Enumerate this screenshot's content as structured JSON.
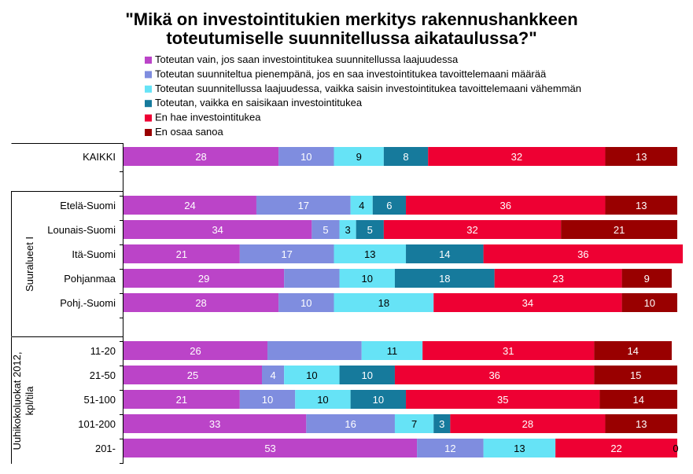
{
  "chart_data": {
    "type": "bar",
    "orientation": "horizontal",
    "stacked": true,
    "title_lines": [
      "\"Mikä on investointitukien merkitys rakennushankkeen",
      "toteutumiselle suunnitellussa aikataulussa?\""
    ],
    "series": [
      {
        "name": "Toteutan vain, jos saan investointitukea  suunnitellussa  laajuudessa",
        "color": "#bb44c8"
      },
      {
        "name": "Toteutan suunniteltua  pienempänä, jos en saa investointitukea  tavoittelemaani  määrää",
        "color": "#7f8ddf"
      },
      {
        "name": "Toteutan suunnitellussa  laajuudessa, vaikka saisin investointitukea  tavoittelemaani  vähemmän",
        "color": "#66e3f6"
      },
      {
        "name": "Toteutan, vaikka en saisikaan investointitukea",
        "color": "#167a9c"
      },
      {
        "name": "En hae investointitukea",
        "color": "#ee0033"
      },
      {
        "name": "En osaa sanoa",
        "color": "#990000"
      }
    ],
    "categories": [
      "KAIKKI",
      "Etelä-Suomi",
      "Lounais-Suomi",
      "Itä-Suomi",
      "Pohjanmaa",
      "Pohj.-Suomi",
      "11-20",
      "21-50",
      "51-100",
      "101-200",
      "201-"
    ],
    "groups": [
      {
        "label": "",
        "categories": [
          "KAIKKI"
        ]
      },
      {
        "label": "Suuralueet I",
        "categories": [
          "Etelä-Suomi",
          "Lounais-Suomi",
          "Itä-Suomi",
          "Pohjanmaa",
          "Pohj.-Suomi"
        ]
      },
      {
        "label_lines": [
          "Uuhikokoluokat 2012,",
          "kpl/tila"
        ],
        "categories": [
          "11-20",
          "21-50",
          "51-100",
          "101-200",
          "201-"
        ]
      }
    ],
    "values": [
      [
        28,
        10,
        9,
        8,
        32,
        13
      ],
      [
        24,
        17,
        4,
        6,
        36,
        13
      ],
      [
        34,
        5,
        3,
        5,
        32,
        21
      ],
      [
        21,
        17,
        13,
        14,
        36,
        0
      ],
      [
        29,
        10,
        10,
        18,
        23,
        9
      ],
      [
        28,
        10,
        18,
        0,
        34,
        10
      ],
      [
        26,
        17,
        11,
        0,
        31,
        14
      ],
      [
        25,
        4,
        10,
        10,
        36,
        15
      ],
      [
        21,
        10,
        10,
        10,
        35,
        14
      ],
      [
        33,
        16,
        7,
        3,
        28,
        13
      ],
      [
        53,
        12,
        13,
        0,
        22,
        0
      ]
    ],
    "labels": [
      [
        "28",
        "10",
        "9",
        "8",
        "32",
        "13"
      ],
      [
        "24",
        "17",
        "4",
        "6",
        "36",
        "13"
      ],
      [
        "34",
        "5",
        "3",
        "5",
        "32",
        "21"
      ],
      [
        "21",
        "17",
        "13",
        "14",
        "36",
        ""
      ],
      [
        "29",
        "",
        "10",
        "18",
        "23",
        "9"
      ],
      [
        "28",
        "10",
        "18",
        "",
        "34",
        "10"
      ],
      [
        "26",
        "",
        "11",
        "",
        "31",
        "14"
      ],
      [
        "25",
        "4",
        "10",
        "10",
        "36",
        "15"
      ],
      [
        "21",
        "10",
        "10",
        "10",
        "35",
        "14"
      ],
      [
        "33",
        "16",
        "7",
        "3",
        "28",
        "13"
      ],
      [
        "53",
        "12",
        "13",
        "",
        "22",
        "0"
      ]
    ],
    "xlim": [
      0,
      100
    ],
    "xlabel": "",
    "ylabel": "",
    "legend_position": "top"
  }
}
